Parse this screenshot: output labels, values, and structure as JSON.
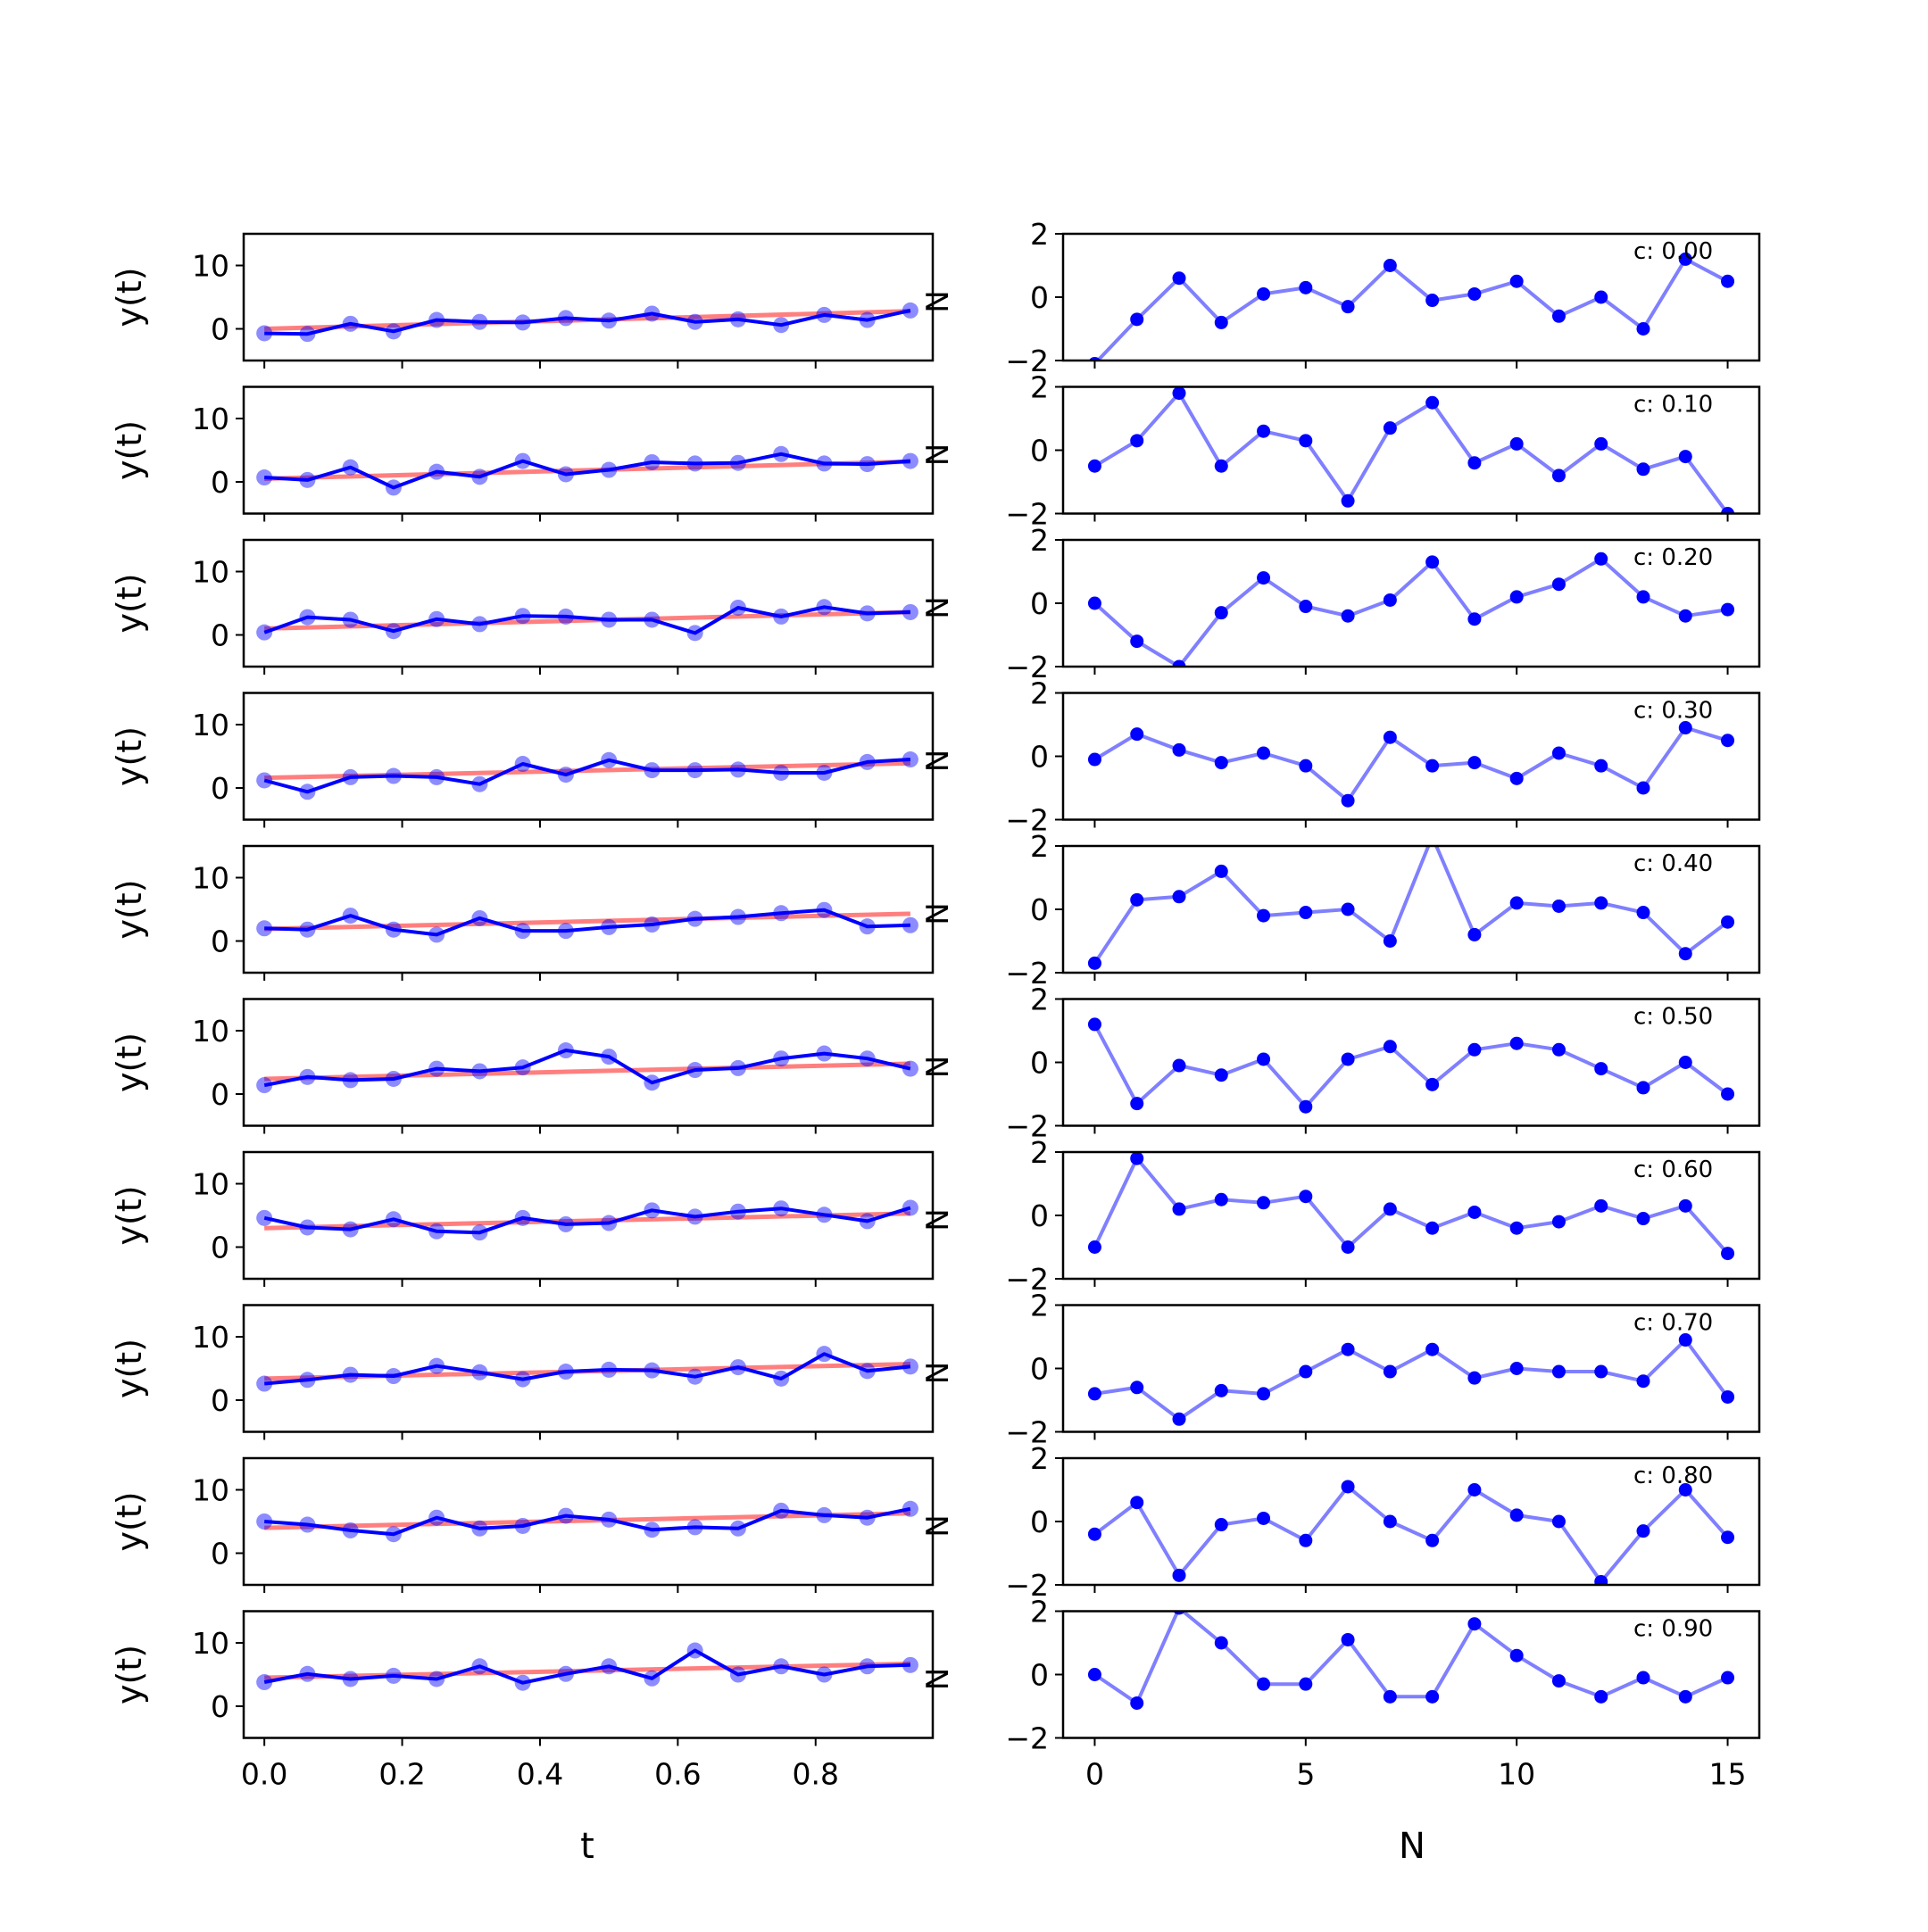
{
  "figure": {
    "left_xlabel": "t",
    "right_xlabel": "N",
    "left_ylabel": "y(t)",
    "right_ylabel": "N"
  },
  "chart_data": [
    {
      "panel": "left",
      "type": "line",
      "description_free": true,
      "xlabel": "t",
      "ylabel": "y(t)",
      "xlim": [
        -0.03,
        0.97
      ],
      "ylim": [
        -5,
        15
      ],
      "x_ticks": [
        "0.0",
        "0.2",
        "0.4",
        "0.6",
        "0.8"
      ],
      "y_ticks": [
        "0",
        "10"
      ],
      "x": [
        0.0,
        0.0625,
        0.125,
        0.1875,
        0.25,
        0.3125,
        0.375,
        0.4375,
        0.5,
        0.5625,
        0.625,
        0.6875,
        0.75,
        0.8125,
        0.875,
        0.9375
      ],
      "rows": [
        {
          "data": [
            -0.7,
            -0.8,
            0.8,
            -0.4,
            1.4,
            1.1,
            1.0,
            1.7,
            1.3,
            2.4,
            1.1,
            1.5,
            0.6,
            2.2,
            1.4,
            2.9
          ],
          "fit": [
            0.0,
            2.8
          ]
        },
        {
          "data": [
            0.7,
            0.3,
            2.3,
            -0.9,
            1.6,
            0.8,
            3.3,
            1.2,
            1.9,
            3.1,
            2.9,
            3.0,
            4.4,
            2.9,
            2.8,
            3.3
          ],
          "fit": [
            0.5,
            3.2
          ]
        },
        {
          "data": [
            0.4,
            2.8,
            2.4,
            0.6,
            2.5,
            1.7,
            3.0,
            2.9,
            2.4,
            2.4,
            0.3,
            4.3,
            2.9,
            4.4,
            3.4,
            3.6
          ],
          "fit": [
            1.0,
            3.6
          ]
        },
        {
          "data": [
            1.2,
            -0.6,
            1.7,
            1.9,
            1.7,
            0.6,
            3.8,
            2.1,
            4.4,
            2.8,
            2.8,
            2.9,
            2.4,
            2.4,
            4.1,
            4.5
          ],
          "fit": [
            1.6,
            3.9
          ]
        },
        {
          "data": [
            2.0,
            1.8,
            4.0,
            1.8,
            1.0,
            3.6,
            1.6,
            1.6,
            2.2,
            2.6,
            3.5,
            3.8,
            4.4,
            4.9,
            2.3,
            2.5
          ],
          "fit": [
            1.9,
            4.3
          ]
        },
        {
          "data": [
            1.4,
            2.7,
            2.2,
            2.4,
            4.0,
            3.6,
            4.2,
            6.9,
            5.9,
            1.8,
            3.8,
            4.1,
            5.6,
            6.4,
            5.6,
            4.0
          ],
          "fit": [
            2.4,
            4.8
          ]
        },
        {
          "data": [
            4.6,
            3.1,
            2.8,
            4.4,
            2.5,
            2.3,
            4.6,
            3.6,
            3.8,
            5.8,
            4.8,
            5.6,
            6.1,
            5.1,
            4.1,
            6.2
          ],
          "fit": [
            3.0,
            5.3
          ]
        },
        {
          "data": [
            2.6,
            3.2,
            4.0,
            3.8,
            5.4,
            4.4,
            3.3,
            4.5,
            4.8,
            4.7,
            3.7,
            5.2,
            3.4,
            7.3,
            4.6,
            5.3
          ],
          "fit": [
            3.4,
            5.7
          ]
        },
        {
          "data": [
            5.0,
            4.5,
            3.6,
            3.0,
            5.6,
            3.9,
            4.3,
            5.9,
            5.3,
            3.7,
            4.1,
            3.9,
            6.7,
            6.0,
            5.6,
            7.0
          ],
          "fit": [
            4.0,
            6.3
          ]
        },
        {
          "data": [
            3.8,
            5.1,
            4.3,
            4.8,
            4.3,
            6.3,
            3.7,
            5.1,
            6.3,
            4.4,
            8.8,
            5.0,
            6.3,
            5.0,
            6.3,
            6.5
          ],
          "fit": [
            4.5,
            6.7
          ]
        }
      ]
    },
    {
      "panel": "right",
      "type": "line",
      "xlabel": "N",
      "xlim": [
        -0.75,
        15.75
      ],
      "ylim": [
        -2,
        2
      ],
      "x_ticks": [
        "0",
        "5",
        "10",
        "15"
      ],
      "y_ticks": [
        "2",
        "0",
        "−2"
      ],
      "x": [
        0,
        1,
        2,
        3,
        4,
        5,
        6,
        7,
        8,
        9,
        10,
        11,
        12,
        13,
        14,
        15
      ],
      "rows": [
        {
          "label": "c: 0.00",
          "values": [
            -2.1,
            -0.7,
            0.6,
            -0.8,
            0.1,
            0.3,
            -0.3,
            1.0,
            -0.1,
            0.1,
            0.5,
            -0.6,
            0.0,
            -1.0,
            1.2,
            0.5
          ]
        },
        {
          "label": "c: 0.10",
          "values": [
            -0.5,
            0.3,
            1.8,
            -0.5,
            0.6,
            0.3,
            -1.6,
            0.7,
            1.5,
            -0.4,
            0.2,
            -0.8,
            0.2,
            -0.6,
            -0.2,
            -2.0
          ]
        },
        {
          "label": "c: 0.20",
          "values": [
            0.0,
            -1.2,
            -2.0,
            -0.3,
            0.8,
            -0.1,
            -0.4,
            0.1,
            1.3,
            -0.5,
            0.2,
            0.6,
            1.4,
            0.2,
            -0.4,
            -0.2
          ]
        },
        {
          "label": "c: 0.30",
          "values": [
            -0.1,
            0.7,
            0.2,
            -0.2,
            0.1,
            -0.3,
            -1.4,
            0.6,
            -0.3,
            -0.2,
            -0.7,
            0.1,
            -0.3,
            -1.0,
            0.9,
            0.5
          ]
        },
        {
          "label": "c: 0.40",
          "values": [
            -1.7,
            0.3,
            0.4,
            1.2,
            -0.2,
            -0.1,
            0.0,
            -1.0,
            2.3,
            -0.8,
            0.2,
            0.1,
            0.2,
            -0.1,
            -1.4,
            -0.4
          ]
        },
        {
          "label": "c: 0.50",
          "values": [
            1.2,
            -1.3,
            -0.1,
            -0.4,
            0.1,
            -1.4,
            0.1,
            0.5,
            -0.7,
            0.4,
            0.6,
            0.4,
            -0.2,
            -0.8,
            0.0,
            -1.0
          ]
        },
        {
          "label": "c: 0.60",
          "values": [
            -1.0,
            1.8,
            0.2,
            0.5,
            0.4,
            0.6,
            -1.0,
            0.2,
            -0.4,
            0.1,
            -0.4,
            -0.2,
            0.3,
            -0.1,
            0.3,
            -1.2
          ]
        },
        {
          "label": "c: 0.70",
          "values": [
            -0.8,
            -0.6,
            -1.6,
            -0.7,
            -0.8,
            -0.1,
            0.6,
            -0.1,
            0.6,
            -0.3,
            0.0,
            -0.1,
            -0.1,
            -0.4,
            0.9,
            -0.9
          ]
        },
        {
          "label": "c: 0.80",
          "values": [
            -0.4,
            0.6,
            -1.7,
            -0.1,
            0.1,
            -0.6,
            1.1,
            0.0,
            -0.6,
            1.0,
            0.2,
            0.0,
            -1.9,
            -0.3,
            1.0,
            -0.5
          ]
        },
        {
          "label": "c: 0.90",
          "values": [
            0.0,
            -0.9,
            2.1,
            1.0,
            -0.3,
            -0.3,
            1.1,
            -0.7,
            -0.7,
            1.6,
            0.6,
            -0.2,
            -0.7,
            -0.1,
            -0.7,
            -0.1
          ]
        }
      ]
    }
  ]
}
